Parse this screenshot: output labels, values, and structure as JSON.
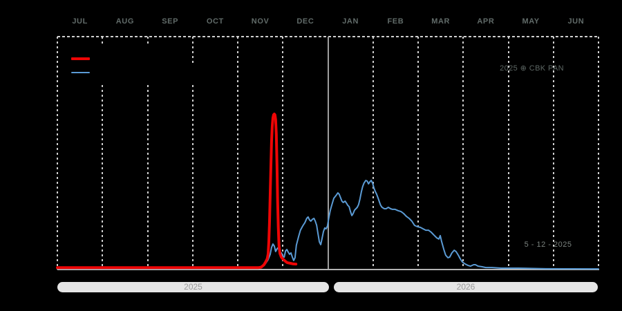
{
  "chart": {
    "x_axis": {
      "month_labels": [
        "JUL",
        "AUG",
        "SEP",
        "OCT",
        "NOV",
        "DEC",
        "JAN",
        "FEB",
        "MAR",
        "APR",
        "MAY",
        "JUN"
      ],
      "range_note": "JUL 2025 through JUN 2026"
    },
    "annotation_credit": "2025 ⊕ CBK PAN",
    "annotation_date": "5 - 12 - 2025",
    "year_bars": [
      {
        "label": "2025"
      },
      {
        "label": "2026"
      }
    ]
  },
  "colors": {
    "background": "#000000",
    "grid_dash": "#cfcfcf",
    "year_divider": "#9e9e9e",
    "axis_line": "#b3b3b3",
    "month_label_text": "#616b69",
    "credit_text": "#5d6764",
    "date_text": "#7b837f",
    "year_bar_fill": "#e5e5e5",
    "year_bar_text": "#9a9a9a",
    "red_series": "#ee0505",
    "blue_series": "#5b9bd5"
  },
  "chart_data": {
    "type": "line",
    "title": "",
    "xlabel": "",
    "ylabel": "",
    "x_unit": "months from 1 Jul 2025 (0 = Jul 1 2025, 12 = Jul 1 2026)",
    "y_unit": "relative intensity 0-1 (y axis unlabeled in image; 1 = red peak)",
    "x_range": [
      0,
      12
    ],
    "y_range": [
      0,
      1.05
    ],
    "grid": "vertical dashed lines at month boundaries; solid divider at year change (x=6)",
    "legend_position": "top-left inside plot (line samples only, labels not visible)",
    "year_divider_at": 6,
    "categories": [
      "JUL",
      "AUG",
      "SEP",
      "OCT",
      "NOV",
      "DEC",
      "JAN",
      "FEB",
      "MAR",
      "APR",
      "MAY",
      "JUN"
    ],
    "series": [
      {
        "name": "red-series",
        "color": "#ee0505",
        "stroke_width": 4,
        "points": [
          [
            0,
            0.012
          ],
          [
            3.9,
            0.012
          ],
          [
            4.45,
            0.012
          ],
          [
            4.52,
            0.015
          ],
          [
            4.58,
            0.03
          ],
          [
            4.62,
            0.05
          ],
          [
            4.655,
            0.07
          ],
          [
            4.675,
            0.1
          ],
          [
            4.69,
            0.18
          ],
          [
            4.705,
            0.31
          ],
          [
            4.72,
            0.49
          ],
          [
            4.735,
            0.67
          ],
          [
            4.75,
            0.82
          ],
          [
            4.765,
            0.92
          ],
          [
            4.78,
            0.975
          ],
          [
            4.795,
            0.995
          ],
          [
            4.81,
            1.0
          ],
          [
            4.825,
            0.995
          ],
          [
            4.84,
            0.965
          ],
          [
            4.855,
            0.87
          ],
          [
            4.87,
            0.67
          ],
          [
            4.885,
            0.44
          ],
          [
            4.9,
            0.27
          ],
          [
            4.915,
            0.155
          ],
          [
            4.935,
            0.105
          ],
          [
            4.965,
            0.08
          ],
          [
            5.01,
            0.065
          ],
          [
            5.06,
            0.052
          ],
          [
            5.1,
            0.044
          ],
          [
            5.17,
            0.04
          ],
          [
            5.23,
            0.036
          ],
          [
            5.29,
            0.035
          ]
        ]
      },
      {
        "name": "blue-series",
        "color": "#5b9bd5",
        "stroke_width": 2,
        "points": [
          [
            0,
            0.007
          ],
          [
            3.9,
            0.007
          ],
          [
            4.4,
            0.01
          ],
          [
            4.55,
            0.022
          ],
          [
            4.61,
            0.036
          ],
          [
            4.67,
            0.062
          ],
          [
            4.72,
            0.098
          ],
          [
            4.75,
            0.142
          ],
          [
            4.78,
            0.164
          ],
          [
            4.81,
            0.151
          ],
          [
            4.84,
            0.116
          ],
          [
            4.87,
            0.133
          ],
          [
            4.9,
            0.142
          ],
          [
            4.93,
            0.098
          ],
          [
            4.97,
            0.107
          ],
          [
            5.0,
            0.084
          ],
          [
            5.03,
            0.08
          ],
          [
            5.06,
            0.12
          ],
          [
            5.09,
            0.129
          ],
          [
            5.12,
            0.111
          ],
          [
            5.15,
            0.098
          ],
          [
            5.18,
            0.107
          ],
          [
            5.21,
            0.08
          ],
          [
            5.24,
            0.058
          ],
          [
            5.27,
            0.076
          ],
          [
            5.3,
            0.156
          ],
          [
            5.35,
            0.213
          ],
          [
            5.39,
            0.253
          ],
          [
            5.44,
            0.28
          ],
          [
            5.49,
            0.302
          ],
          [
            5.53,
            0.329
          ],
          [
            5.56,
            0.338
          ],
          [
            5.59,
            0.32
          ],
          [
            5.62,
            0.311
          ],
          [
            5.66,
            0.324
          ],
          [
            5.69,
            0.329
          ],
          [
            5.72,
            0.311
          ],
          [
            5.75,
            0.284
          ],
          [
            5.78,
            0.231
          ],
          [
            5.81,
            0.178
          ],
          [
            5.84,
            0.16
          ],
          [
            5.87,
            0.2
          ],
          [
            5.9,
            0.244
          ],
          [
            5.93,
            0.267
          ],
          [
            5.96,
            0.262
          ],
          [
            5.99,
            0.28
          ],
          [
            6.02,
            0.333
          ],
          [
            6.05,
            0.378
          ],
          [
            6.08,
            0.409
          ],
          [
            6.13,
            0.458
          ],
          [
            6.18,
            0.476
          ],
          [
            6.22,
            0.493
          ],
          [
            6.25,
            0.484
          ],
          [
            6.28,
            0.462
          ],
          [
            6.31,
            0.44
          ],
          [
            6.34,
            0.431
          ],
          [
            6.38,
            0.44
          ],
          [
            6.41,
            0.427
          ],
          [
            6.44,
            0.413
          ],
          [
            6.47,
            0.404
          ],
          [
            6.5,
            0.373
          ],
          [
            6.53,
            0.347
          ],
          [
            6.56,
            0.36
          ],
          [
            6.59,
            0.382
          ],
          [
            6.62,
            0.391
          ],
          [
            6.65,
            0.4
          ],
          [
            6.68,
            0.418
          ],
          [
            6.71,
            0.453
          ],
          [
            6.74,
            0.498
          ],
          [
            6.77,
            0.533
          ],
          [
            6.8,
            0.556
          ],
          [
            6.84,
            0.573
          ],
          [
            6.87,
            0.569
          ],
          [
            6.9,
            0.551
          ],
          [
            6.93,
            0.564
          ],
          [
            6.96,
            0.573
          ],
          [
            6.99,
            0.556
          ],
          [
            7.02,
            0.524
          ],
          [
            7.05,
            0.502
          ],
          [
            7.08,
            0.484
          ],
          [
            7.11,
            0.462
          ],
          [
            7.14,
            0.436
          ],
          [
            7.17,
            0.413
          ],
          [
            7.2,
            0.4
          ],
          [
            7.25,
            0.391
          ],
          [
            7.29,
            0.391
          ],
          [
            7.34,
            0.4
          ],
          [
            7.39,
            0.391
          ],
          [
            7.43,
            0.387
          ],
          [
            7.49,
            0.387
          ],
          [
            7.56,
            0.378
          ],
          [
            7.62,
            0.373
          ],
          [
            7.68,
            0.36
          ],
          [
            7.74,
            0.342
          ],
          [
            7.8,
            0.329
          ],
          [
            7.86,
            0.311
          ],
          [
            7.92,
            0.284
          ],
          [
            7.98,
            0.276
          ],
          [
            8.05,
            0.271
          ],
          [
            8.11,
            0.262
          ],
          [
            8.17,
            0.253
          ],
          [
            8.23,
            0.253
          ],
          [
            8.29,
            0.24
          ],
          [
            8.35,
            0.222
          ],
          [
            8.41,
            0.204
          ],
          [
            8.46,
            0.196
          ],
          [
            8.49,
            0.218
          ],
          [
            8.52,
            0.182
          ],
          [
            8.57,
            0.129
          ],
          [
            8.61,
            0.093
          ],
          [
            8.66,
            0.076
          ],
          [
            8.7,
            0.08
          ],
          [
            8.75,
            0.107
          ],
          [
            8.8,
            0.124
          ],
          [
            8.84,
            0.116
          ],
          [
            8.89,
            0.093
          ],
          [
            8.93,
            0.071
          ],
          [
            8.98,
            0.049
          ],
          [
            9.04,
            0.036
          ],
          [
            9.1,
            0.027
          ],
          [
            9.16,
            0.022
          ],
          [
            9.23,
            0.031
          ],
          [
            9.27,
            0.031
          ],
          [
            9.33,
            0.022
          ],
          [
            9.41,
            0.018
          ],
          [
            9.5,
            0.013
          ],
          [
            9.64,
            0.013
          ],
          [
            9.84,
            0.009
          ],
          [
            10.22,
            0.009
          ],
          [
            10.83,
            0.005
          ],
          [
            12,
            0.004
          ]
        ]
      }
    ]
  }
}
